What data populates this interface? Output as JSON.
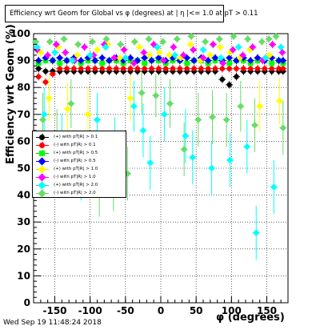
{
  "window": {
    "title": "Efficiency wrt Geom for Global vs φ (degrees) at | η |<= 1.0 at pT > 0.11",
    "timestamp": "Wed Sep 19 11:48:24 2018"
  },
  "chart_data": {
    "type": "scatter",
    "title": "Efficiency wrt Geom for Global vs φ (degrees) at | η |<= 1.0 at pT > 0.11",
    "xlabel": "φ (degrees)",
    "ylabel": "Efficiency wrt Geom (%)",
    "xlim": [
      -180,
      180
    ],
    "ylim": [
      0,
      100
    ],
    "x_ticks": [
      -150,
      -100,
      -50,
      0,
      50,
      100,
      150
    ],
    "y_ticks": [
      0,
      10,
      20,
      30,
      40,
      50,
      60,
      70,
      80,
      90,
      100
    ],
    "grid": true,
    "legend_position": "middle-left",
    "series": [
      {
        "name": "(+) with pT|R| > 0.1",
        "color": "#000000",
        "marker": "circle",
        "x": [
          -173,
          -163,
          -153,
          -143,
          -133,
          -123,
          -113,
          -103,
          -93,
          -83,
          -73,
          -63,
          -53,
          -43,
          -33,
          -23,
          -13,
          -3,
          7,
          17,
          27,
          37,
          47,
          57,
          67,
          77,
          87,
          97,
          107,
          117,
          127,
          137,
          147,
          157,
          167,
          173
        ],
        "y": [
          87,
          86,
          86,
          86,
          86,
          86,
          86,
          86,
          86,
          86,
          86,
          86,
          86,
          86,
          86,
          86,
          86,
          86,
          86,
          86,
          86,
          86,
          86,
          86,
          86,
          86,
          83,
          81,
          84,
          86,
          86,
          86,
          86,
          86,
          86,
          86
        ]
      },
      {
        "name": "(-) with pT|R| > 0.1",
        "color": "#ff0000",
        "marker": "circle",
        "x": [
          -173,
          -163,
          -153,
          -143,
          -133,
          -123,
          -113,
          -103,
          -93,
          -83,
          -73,
          -63,
          -53,
          -43,
          -33,
          -23,
          -13,
          -3,
          7,
          17,
          27,
          37,
          47,
          57,
          67,
          77,
          87,
          97,
          107,
          117,
          127,
          137,
          147,
          157,
          167,
          173
        ],
        "y": [
          84,
          82,
          85,
          87,
          87,
          87,
          87,
          87,
          87,
          87,
          87,
          87,
          87,
          87,
          87,
          87,
          87,
          87,
          87,
          87,
          87,
          87,
          87,
          87,
          87,
          87,
          87,
          87,
          87,
          87,
          87,
          87,
          87,
          87,
          87,
          87
        ]
      },
      {
        "name": "(+) with pT|R| > 0.5",
        "color": "#00ff00",
        "marker": "square",
        "x": [
          -173,
          -163,
          -153,
          -143,
          -133,
          -123,
          -113,
          -103,
          -93,
          -83,
          -73,
          -63,
          -53,
          -43,
          -33,
          -23,
          -13,
          -3,
          7,
          17,
          27,
          37,
          47,
          57,
          67,
          77,
          87,
          97,
          107,
          117,
          127,
          137,
          147,
          157,
          167,
          173
        ],
        "y": [
          89,
          90,
          90,
          89,
          90,
          90,
          89,
          90,
          90,
          89,
          90,
          90,
          89,
          90,
          90,
          89,
          90,
          90,
          89,
          90,
          90,
          89,
          90,
          90,
          89,
          90,
          90,
          89,
          90,
          90,
          89,
          90,
          90,
          89,
          90,
          89
        ]
      },
      {
        "name": "(-) with pT|R| > 0.5",
        "color": "#0000ff",
        "marker": "diamond",
        "x": [
          -173,
          -163,
          -153,
          -143,
          -133,
          -123,
          -113,
          -103,
          -93,
          -83,
          -73,
          -63,
          -53,
          -43,
          -33,
          -23,
          -13,
          -3,
          7,
          17,
          27,
          37,
          47,
          57,
          67,
          77,
          87,
          97,
          107,
          117,
          127,
          137,
          147,
          157,
          167,
          173
        ],
        "y": [
          90,
          91,
          90,
          91,
          90,
          91,
          90,
          91,
          90,
          91,
          90,
          91,
          90,
          91,
          90,
          91,
          90,
          91,
          90,
          91,
          90,
          91,
          90,
          91,
          90,
          91,
          90,
          91,
          90,
          91,
          90,
          91,
          90,
          91,
          90,
          90
        ]
      },
      {
        "name": "(+) with pT|R| > 1.0",
        "color": "#ffff00",
        "marker": "diamond",
        "x": [
          -170,
          -158,
          -145,
          -132,
          -118,
          -103,
          -90,
          -75,
          -58,
          -43,
          -30,
          -16,
          -2,
          12,
          28,
          42,
          56,
          70,
          84,
          98,
          112,
          126,
          140,
          154,
          168
        ],
        "y": [
          93,
          76,
          95,
          72,
          92,
          70,
          94,
          96,
          91,
          76,
          95,
          92,
          93,
          92,
          91,
          96,
          90,
          92,
          95,
          93,
          91,
          94,
          73,
          92,
          75
        ]
      },
      {
        "name": "(-) with pT|R| > 1.0",
        "color": "#ff00ff",
        "marker": "diamond",
        "x": [
          -175,
          -160,
          -148,
          -135,
          -122,
          -108,
          -95,
          -80,
          -66,
          -52,
          -38,
          -24,
          -10,
          4,
          18,
          32,
          46,
          60,
          74,
          88,
          102,
          116,
          130,
          144,
          158,
          172
        ],
        "y": [
          94,
          92,
          96,
          93,
          90,
          95,
          92,
          96,
          91,
          94,
          89,
          93,
          96,
          90,
          95,
          92,
          94,
          91,
          96,
          89,
          94,
          92,
          95,
          90,
          96,
          93
        ]
      },
      {
        "name": "(+) with pT|R| > 2.0",
        "color": "#00ffff",
        "marker": "diamond",
        "x": [
          -175,
          -165,
          -150,
          -140,
          -125,
          -113,
          -100,
          -90,
          -78,
          -65,
          -50,
          -38,
          -25,
          -15,
          -5,
          5,
          20,
          35,
          45,
          60,
          72,
          85,
          98,
          110,
          122,
          135,
          148,
          160,
          170
        ],
        "y": [
          95,
          70,
          93,
          60,
          90,
          48,
          92,
          68,
          95,
          59,
          91,
          73,
          64,
          52,
          95,
          70,
          92,
          62,
          54,
          94,
          50,
          91,
          53,
          95,
          58,
          26,
          91,
          43,
          95
        ]
      },
      {
        "name": "(-) with pT|R| > 2.0",
        "color": "#66dd66",
        "marker": "diamond",
        "x": [
          -177,
          -167,
          -157,
          -147,
          -137,
          -127,
          -117,
          -107,
          -97,
          -87,
          -77,
          -67,
          -57,
          -47,
          -37,
          -27,
          -17,
          -7,
          3,
          13,
          23,
          33,
          43,
          53,
          63,
          73,
          83,
          93,
          103,
          113,
          123,
          133,
          143,
          153,
          163,
          173
        ],
        "y": [
          97,
          68,
          97,
          62,
          98,
          74,
          96,
          50,
          97,
          42,
          98,
          44,
          96,
          48,
          97,
          78,
          98,
          77,
          97,
          74,
          98,
          57,
          99,
          68,
          97,
          69,
          98,
          68,
          99,
          73,
          98,
          66,
          97,
          98,
          99,
          65
        ]
      }
    ]
  }
}
